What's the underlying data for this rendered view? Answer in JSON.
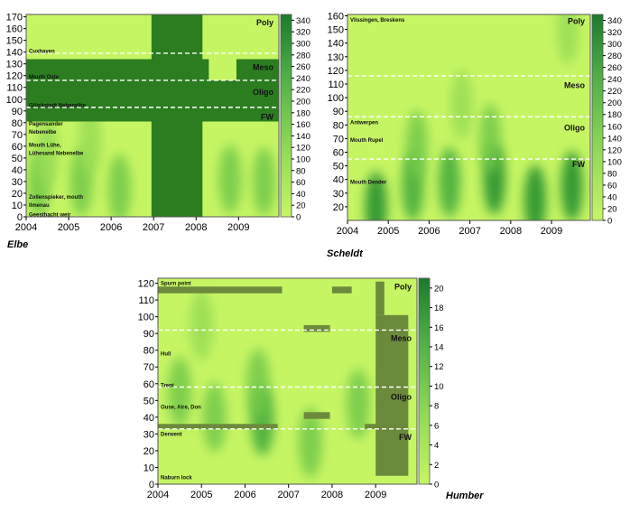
{
  "chart_data": [
    {
      "type": "heatmap",
      "title": "Elbe",
      "x_ticks": [
        "2004",
        "2005",
        "2006",
        "2007",
        "2008",
        "2009"
      ],
      "xlim": [
        2004,
        2009.95
      ],
      "y_ticks": [
        0,
        10,
        20,
        30,
        40,
        50,
        60,
        70,
        80,
        90,
        100,
        110,
        120,
        130,
        140,
        150,
        160,
        170
      ],
      "ylim": [
        0,
        172
      ],
      "colorbar_ticks": [
        0,
        20,
        40,
        60,
        80,
        100,
        120,
        140,
        160,
        180,
        200,
        220,
        240,
        260,
        280,
        300,
        320,
        340
      ],
      "colorbar_range": [
        0,
        350
      ],
      "zones": [
        {
          "label": "Poly",
          "y": 165
        },
        {
          "label": "Meso",
          "y": 127
        },
        {
          "label": "Oligo",
          "y": 106
        },
        {
          "label": "FW",
          "y": 85
        }
      ],
      "boundaries": [
        139,
        116,
        93
      ],
      "locations": [
        {
          "label": "Cuxhaven",
          "y": 141
        },
        {
          "label": "Mouth Oste",
          "y": 119
        },
        {
          "label": "Glückstadt Nebenelbe",
          "y": 95
        },
        {
          "label": "Pagensander",
          "y": 79
        },
        {
          "label": "Nebenelbe",
          "y": 72
        },
        {
          "label": "Mouth Lühe,",
          "y": 61
        },
        {
          "label": "Lühesand Nebenelbe",
          "y": 54
        },
        {
          "label": "Zollenspieker, mouth",
          "y": 17
        },
        {
          "label": "Ilmenau",
          "y": 10
        },
        {
          "label": "Geesthacht weir",
          "y": 2
        }
      ],
      "no_data_blocks": [
        {
          "x0": 2004.0,
          "x1": 2009.95,
          "y0": 81,
          "y1": 116
        },
        {
          "x0": 2004.0,
          "x1": 2008.3,
          "y0": 116,
          "y1": 134
        },
        {
          "x0": 2008.95,
          "x1": 2009.95,
          "y0": 116,
          "y1": 134
        },
        {
          "x0": 2006.95,
          "x1": 2008.15,
          "y0": 0,
          "y1": 172
        }
      ],
      "hotspots": [
        {
          "x": 2004.3,
          "y": 28,
          "v": 160
        },
        {
          "x": 2005.3,
          "y": 30,
          "v": 170
        },
        {
          "x": 2006.2,
          "y": 24,
          "v": 130
        },
        {
          "x": 2008.8,
          "y": 32,
          "v": 150
        },
        {
          "x": 2009.6,
          "y": 30,
          "v": 140
        },
        {
          "x": 2004.5,
          "y": 55,
          "v": 80
        },
        {
          "x": 2005.5,
          "y": 65,
          "v": 70
        }
      ]
    },
    {
      "type": "heatmap",
      "title": "Scheldt",
      "x_ticks": [
        "2004",
        "2005",
        "2006",
        "2007",
        "2008",
        "2009"
      ],
      "xlim": [
        2004,
        2009.95
      ],
      "y_ticks": [
        20,
        30,
        40,
        50,
        60,
        70,
        80,
        90,
        100,
        110,
        120,
        130,
        140,
        150,
        160
      ],
      "ylim": [
        10,
        161
      ],
      "colorbar_ticks": [
        0,
        20,
        40,
        60,
        80,
        100,
        120,
        140,
        160,
        180,
        200,
        220,
        240,
        260,
        280,
        300,
        320,
        340
      ],
      "colorbar_range": [
        0,
        350
      ],
      "zones": [
        {
          "label": "Poly",
          "y": 156
        },
        {
          "label": "Meso",
          "y": 109
        },
        {
          "label": "Oligo",
          "y": 78
        },
        {
          "label": "FW",
          "y": 51
        }
      ],
      "boundaries": [
        116,
        86,
        55
      ],
      "locations": [
        {
          "label": "Vlissingen, Breskens",
          "y": 157
        },
        {
          "label": "Antwerpen",
          "y": 82
        },
        {
          "label": "Mouth Rupel",
          "y": 69
        },
        {
          "label": "Mouth Dender",
          "y": 38
        }
      ],
      "no_data_blocks": [],
      "hotspots": [
        {
          "x": 2004.7,
          "y": 20,
          "v": 300
        },
        {
          "x": 2005.6,
          "y": 35,
          "v": 230
        },
        {
          "x": 2006.5,
          "y": 38,
          "v": 220
        },
        {
          "x": 2007.6,
          "y": 40,
          "v": 330
        },
        {
          "x": 2008.6,
          "y": 25,
          "v": 320
        },
        {
          "x": 2009.5,
          "y": 35,
          "v": 280
        },
        {
          "x": 2005.7,
          "y": 65,
          "v": 140
        },
        {
          "x": 2007.5,
          "y": 70,
          "v": 150
        },
        {
          "x": 2006.8,
          "y": 95,
          "v": 100
        },
        {
          "x": 2009.4,
          "y": 150,
          "v": 90
        }
      ]
    },
    {
      "type": "heatmap",
      "title": "Humber",
      "x_ticks": [
        "2004",
        "2005",
        "2006",
        "2007",
        "2008",
        "2009"
      ],
      "xlim": [
        2004,
        2009.95
      ],
      "y_ticks": [
        0,
        10,
        20,
        30,
        40,
        50,
        60,
        70,
        80,
        90,
        100,
        110,
        120
      ],
      "ylim": [
        0,
        123
      ],
      "colorbar_ticks": [
        0,
        2,
        4,
        6,
        8,
        10,
        12,
        14,
        16,
        18,
        20
      ],
      "colorbar_range": [
        0,
        21
      ],
      "zones": [
        {
          "label": "Poly",
          "y": 118
        },
        {
          "label": "Meso",
          "y": 87
        },
        {
          "label": "Oligo",
          "y": 52
        },
        {
          "label": "FW",
          "y": 28
        }
      ],
      "boundaries": [
        92,
        58,
        33
      ],
      "locations": [
        {
          "label": "Spurn point",
          "y": 120
        },
        {
          "label": "Hull",
          "y": 78
        },
        {
          "label": "Trent",
          "y": 59
        },
        {
          "label": "Ouse, Aire, Don",
          "y": 46
        },
        {
          "label": "Derwent",
          "y": 30
        },
        {
          "label": "Naburn lock",
          "y": 4
        }
      ],
      "no_data_blocks": [
        {
          "x0": 2004.0,
          "x1": 2006.85,
          "y0": 114,
          "y1": 118
        },
        {
          "x0": 2008.0,
          "x1": 2008.45,
          "y0": 114,
          "y1": 118
        },
        {
          "x0": 2007.35,
          "x1": 2007.95,
          "y0": 91,
          "y1": 95
        },
        {
          "x0": 2004.0,
          "x1": 2006.75,
          "y0": 33,
          "y1": 36
        },
        {
          "x0": 2007.35,
          "x1": 2007.95,
          "y0": 39,
          "y1": 43
        },
        {
          "x0": 2008.75,
          "x1": 2009.1,
          "y0": 33,
          "y1": 36
        },
        {
          "x0": 2009.0,
          "x1": 2009.75,
          "y0": 5,
          "y1": 101
        },
        {
          "x0": 2009.0,
          "x1": 2009.2,
          "y0": 101,
          "y1": 121
        }
      ],
      "hotspots": [
        {
          "x": 2006.4,
          "y": 38,
          "v": 12
        },
        {
          "x": 2006.3,
          "y": 60,
          "v": 10
        },
        {
          "x": 2005.3,
          "y": 40,
          "v": 9
        },
        {
          "x": 2004.5,
          "y": 55,
          "v": 8
        },
        {
          "x": 2008.6,
          "y": 48,
          "v": 9
        },
        {
          "x": 2007.5,
          "y": 25,
          "v": 7
        },
        {
          "x": 2005.0,
          "y": 95,
          "v": 6
        }
      ]
    }
  ]
}
